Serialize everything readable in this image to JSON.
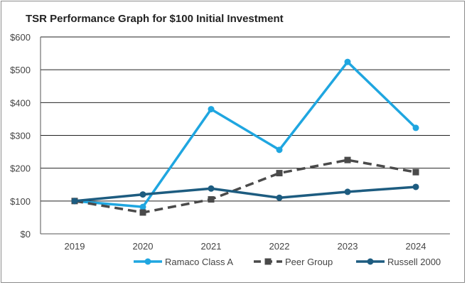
{
  "chart_data": {
    "type": "line",
    "title": "TSR Performance Graph for $100 Initial Investment",
    "categories": [
      "2019",
      "2020",
      "2021",
      "2022",
      "2023",
      "2024"
    ],
    "y_ticks": [
      "$0",
      "$100",
      "$200",
      "$300",
      "$400",
      "$500",
      "$600"
    ],
    "ylim": [
      0,
      600
    ],
    "grid": true,
    "legend_position": "bottom",
    "series": [
      {
        "name": "Ramaco Class A",
        "color": "#1fa6e0",
        "style": "solid",
        "marker": "circle",
        "values": [
          100,
          82,
          380,
          256,
          524,
          323
        ]
      },
      {
        "name": "Peer Group",
        "color": "#4a4a4a",
        "style": "dashed",
        "marker": "square",
        "values": [
          100,
          65,
          105,
          185,
          225,
          188
        ]
      },
      {
        "name": "Russell 2000",
        "color": "#1d5c80",
        "style": "solid",
        "marker": "circle",
        "values": [
          100,
          120,
          138,
          110,
          128,
          143
        ]
      }
    ]
  }
}
